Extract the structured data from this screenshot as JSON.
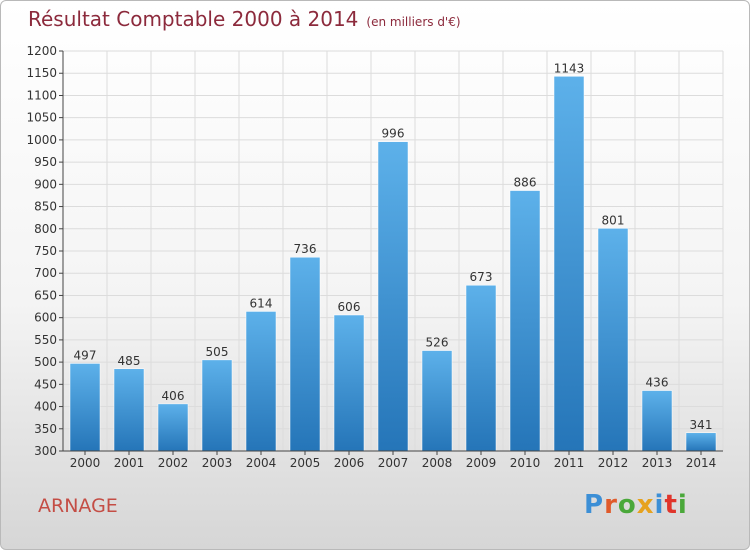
{
  "header": {
    "title": "Résultat Comptable 2000 à 2014",
    "unit": "(en milliers d'€)"
  },
  "footer": {
    "commune": "ARNAGE",
    "logo_text": "Proxiti",
    "logo_colors": [
      "#3c8fd6",
      "#e05a2a",
      "#4aa83a",
      "#e6a21e",
      "#3c8fd6",
      "#e0352b",
      "#4aa83a"
    ]
  },
  "colors": {
    "bar_top": "#5db1ea",
    "bar_bottom": "#2575b8",
    "title": "#8c2a3c",
    "commune": "#c44d45"
  },
  "chart_data": {
    "type": "bar",
    "title": "Résultat Comptable 2000 à 2014",
    "subtitle": "(en milliers d'€)",
    "xlabel": "",
    "ylabel": "",
    "categories": [
      "2000",
      "2001",
      "2002",
      "2003",
      "2004",
      "2005",
      "2006",
      "2007",
      "2008",
      "2009",
      "2010",
      "2011",
      "2012",
      "2013",
      "2014"
    ],
    "values": [
      497,
      485,
      406,
      505,
      614,
      736,
      606,
      996,
      526,
      673,
      886,
      1143,
      801,
      436,
      341
    ],
    "ylim": [
      300,
      1200
    ],
    "yticks": [
      300,
      350,
      400,
      450,
      500,
      550,
      600,
      650,
      700,
      750,
      800,
      850,
      900,
      950,
      1000,
      1050,
      1100,
      1150,
      1200
    ],
    "grid": true,
    "data_labels": true,
    "legend": "none"
  }
}
